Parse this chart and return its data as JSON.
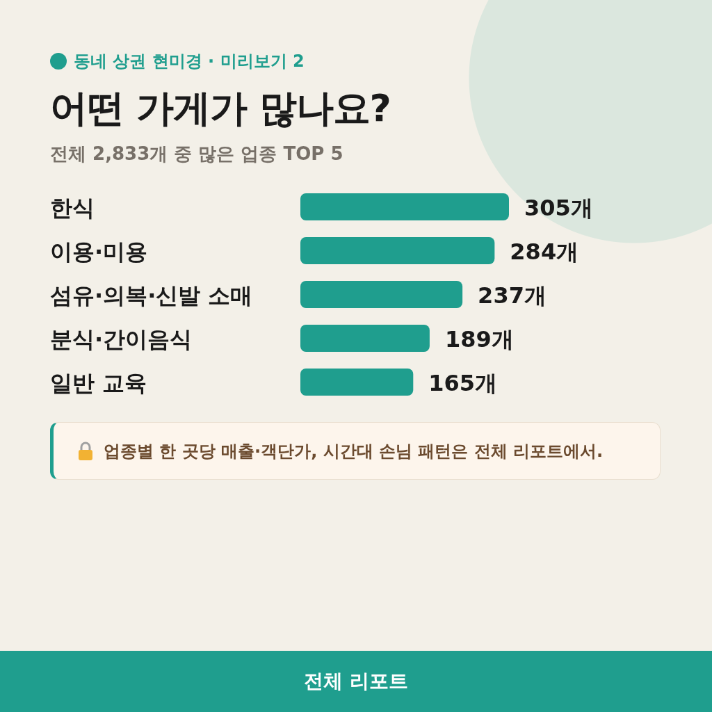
{
  "chart_data": {
    "type": "bar",
    "orientation": "horizontal",
    "title": "어떤 가게가 많나요?",
    "subtitle": "전체 2,833개 중 많은 업종 TOP 5",
    "categories": [
      "한식",
      "이용·미용",
      "섬유·의복·신발 소매",
      "분식·간이음식",
      "일반 교육"
    ],
    "values": [
      305,
      284,
      237,
      189,
      165
    ],
    "value_labels": [
      "305개",
      "284개",
      "237개",
      "189개",
      "165개"
    ],
    "color": "#1f9e8e",
    "annotations": [
      "동네 상권 현미경 · 미리보기 2",
      "업종별 한 곳당 매출·객단가, 시간대 손님 패턴은 전체 리포트에서.",
      "전체 리포트"
    ]
  }
}
